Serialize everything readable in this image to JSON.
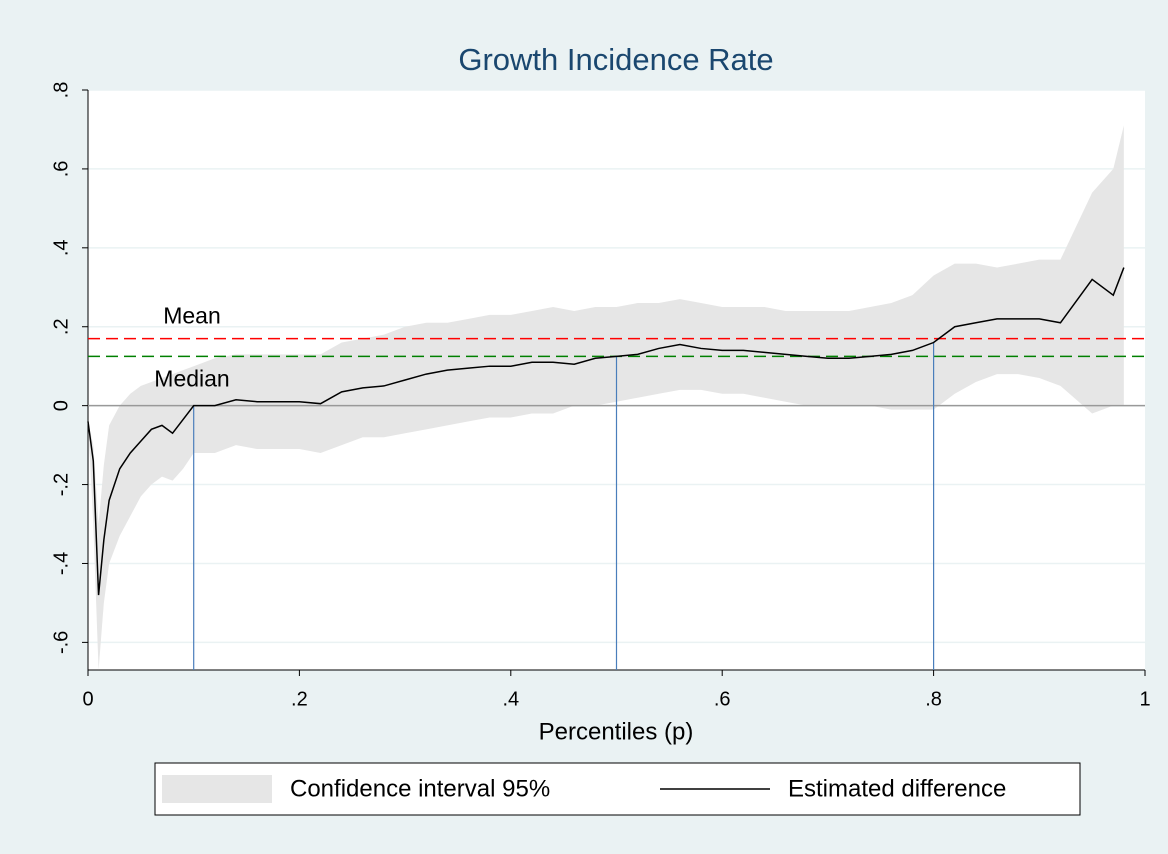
{
  "chart_data": {
    "type": "line",
    "title": "Growth Incidence Rate",
    "x_label": "Percentiles (p)",
    "x": [
      0,
      0.005,
      0.01,
      0.015,
      0.02,
      0.03,
      0.04,
      0.05,
      0.06,
      0.07,
      0.08,
      0.09,
      0.1,
      0.12,
      0.14,
      0.16,
      0.18,
      0.2,
      0.22,
      0.24,
      0.26,
      0.28,
      0.3,
      0.32,
      0.34,
      0.36,
      0.38,
      0.4,
      0.42,
      0.44,
      0.46,
      0.48,
      0.5,
      0.52,
      0.54,
      0.56,
      0.58,
      0.6,
      0.62,
      0.64,
      0.66,
      0.68,
      0.7,
      0.72,
      0.74,
      0.76,
      0.78,
      0.8,
      0.82,
      0.84,
      0.86,
      0.88,
      0.9,
      0.92,
      0.95,
      0.97,
      0.98
    ],
    "series": [
      {
        "name": "Confidence interval 95%",
        "color": "#e6e6e6",
        "upper": [
          -0.04,
          -0.1,
          -0.3,
          -0.15,
          -0.05,
          0,
          0.03,
          0.05,
          0.06,
          0.07,
          0.08,
          0.09,
          0.1,
          0.12,
          0.13,
          0.13,
          0.13,
          0.13,
          0.13,
          0.16,
          0.17,
          0.18,
          0.2,
          0.21,
          0.21,
          0.22,
          0.23,
          0.23,
          0.24,
          0.25,
          0.24,
          0.25,
          0.25,
          0.26,
          0.26,
          0.27,
          0.26,
          0.25,
          0.25,
          0.25,
          0.24,
          0.24,
          0.24,
          0.24,
          0.25,
          0.26,
          0.28,
          0.33,
          0.36,
          0.36,
          0.35,
          0.36,
          0.37,
          0.37,
          0.54,
          0.6,
          0.71
        ],
        "lower": [
          -0.04,
          -0.3,
          -0.67,
          -0.5,
          -0.4,
          -0.33,
          -0.28,
          -0.23,
          -0.2,
          -0.18,
          -0.19,
          -0.16,
          -0.12,
          -0.12,
          -0.1,
          -0.11,
          -0.11,
          -0.11,
          -0.12,
          -0.1,
          -0.08,
          -0.08,
          -0.07,
          -0.06,
          -0.05,
          -0.04,
          -0.03,
          -0.03,
          -0.02,
          -0.02,
          0,
          0,
          0.01,
          0.02,
          0.03,
          0.04,
          0.04,
          0.03,
          0.03,
          0.02,
          0.01,
          0,
          0,
          0,
          0,
          -0.01,
          -0.01,
          -0.01,
          0.03,
          0.06,
          0.08,
          0.08,
          0.07,
          0.05,
          -0.02,
          0,
          0
        ]
      },
      {
        "name": "Estimated difference",
        "color": "#000000",
        "values": [
          -0.04,
          -0.14,
          -0.48,
          -0.34,
          -0.24,
          -0.16,
          -0.12,
          -0.09,
          -0.06,
          -0.05,
          -0.07,
          -0.035,
          0,
          0,
          0.015,
          0.01,
          0.01,
          0.01,
          0.005,
          0.035,
          0.045,
          0.05,
          0.065,
          0.08,
          0.09,
          0.095,
          0.1,
          0.1,
          0.11,
          0.11,
          0.105,
          0.12,
          0.125,
          0.13,
          0.145,
          0.155,
          0.145,
          0.14,
          0.14,
          0.135,
          0.13,
          0.125,
          0.12,
          0.12,
          0.125,
          0.13,
          0.14,
          0.16,
          0.2,
          0.21,
          0.22,
          0.22,
          0.22,
          0.21,
          0.32,
          0.28,
          0.35
        ]
      }
    ],
    "xlim": [
      0,
      1
    ],
    "xticks": [
      0,
      {
        "value": 0.2,
        "label": ".2"
      },
      {
        "value": 0.4,
        "label": ".4"
      },
      {
        "value": 0.6,
        "label": ".6"
      },
      {
        "value": 0.8,
        "label": ".8"
      },
      1
    ],
    "ylim": [
      -0.67,
      0.8
    ],
    "yticks": [
      {
        "value": -0.6,
        "label": "-.6"
      },
      {
        "value": -0.4,
        "label": "-.4"
      },
      {
        "value": -0.2,
        "label": "-.2"
      },
      0,
      {
        "value": 0.2,
        "label": ".2"
      },
      {
        "value": 0.4,
        "label": ".4"
      },
      {
        "value": 0.6,
        "label": ".6"
      },
      {
        "value": 0.8,
        "label": ".8"
      }
    ],
    "grid": true,
    "zero_line": 0,
    "mean": {
      "label": "Mean",
      "value": 0.17,
      "color": "#ff0000"
    },
    "median": {
      "label": "Median",
      "value": 0.125,
      "color": "#008000"
    },
    "reference_x": [
      0.1,
      0.5,
      0.8
    ],
    "reference_color": "#4a7ebb",
    "legend": "bottom"
  }
}
